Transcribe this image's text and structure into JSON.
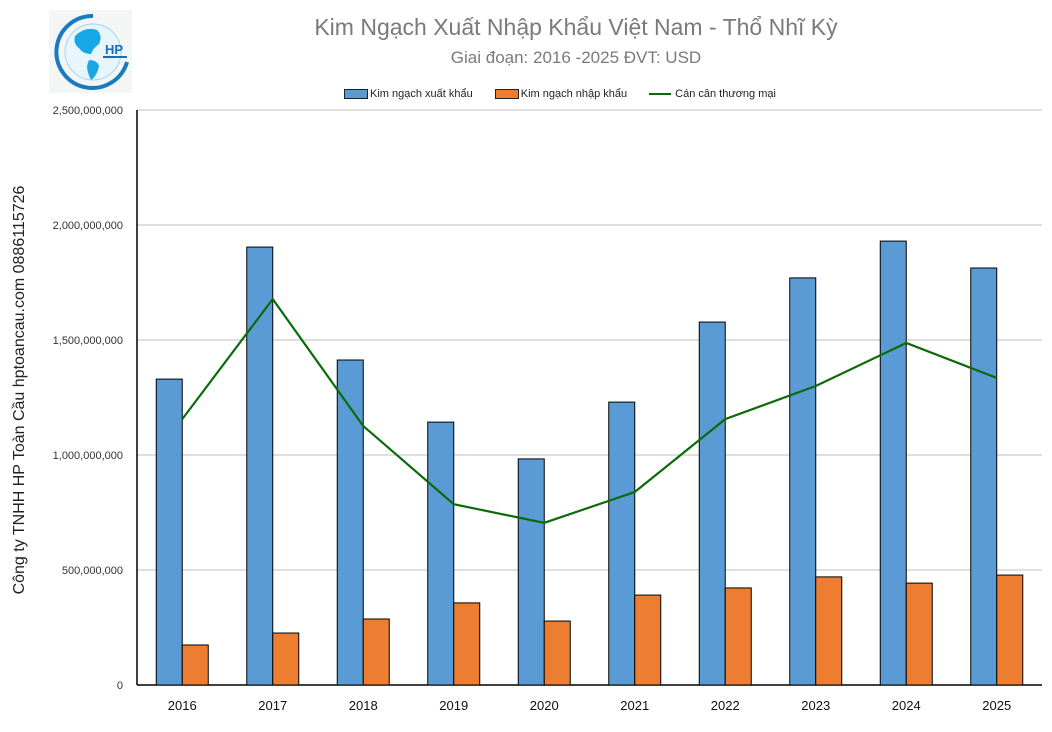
{
  "header": {
    "title": "Kim Ngạch Xuất Nhập Khẩu Việt Nam - Thổ Nhĩ Kỳ",
    "subtitle": "Giai đoạn: 2016 -2025  ĐVT: USD",
    "logo_text": "HP"
  },
  "side_label": "Công ty TNHH HP Toàn Cầu hptoancau.com 0886115726",
  "legend": [
    {
      "label": "Kim ngạch xuất khẩu",
      "type": "box",
      "color": "#5b9bd5"
    },
    {
      "label": "Kim ngạch nhập khẩu",
      "type": "box",
      "color": "#ed7d31"
    },
    {
      "label": "Cán cân thương mại",
      "type": "line",
      "color": "#0b6b0b"
    }
  ],
  "colors": {
    "export": "#5b9bd5",
    "import": "#ed7d31",
    "balance": "#0b6b0b",
    "grid": "#bfbfbf",
    "title": "#7a7a7a"
  },
  "chart_data": {
    "type": "bar",
    "title": "Kim Ngạch Xuất Nhập Khẩu Việt Nam - Thổ Nhĩ Kỳ",
    "subtitle": "Giai đoạn: 2016 -2025  ĐVT: USD",
    "xlabel": "",
    "ylabel": "",
    "ylim": [
      0,
      2500000000
    ],
    "yticks": [
      0,
      500000000,
      1000000000,
      1500000000,
      2000000000,
      2500000000
    ],
    "ytick_labels": [
      "0",
      "500,000,000",
      "1,000,000,000",
      "1,500,000,000",
      "2,000,000,000",
      "2,500,000,000"
    ],
    "grid": true,
    "legend_position": "top",
    "categories": [
      "2016",
      "2017",
      "2018",
      "2019",
      "2020",
      "2021",
      "2022",
      "2023",
      "2024",
      "2025"
    ],
    "series": [
      {
        "name": "Kim ngạch xuất khẩu",
        "type": "bar",
        "color": "#5b9bd5",
        "values": [
          1330000000,
          1904000000,
          1413000000,
          1143000000,
          983000000,
          1230000000,
          1578000000,
          1770000000,
          1930000000,
          1813000000
        ]
      },
      {
        "name": "Kim ngạch nhập khẩu",
        "type": "bar",
        "color": "#ed7d31",
        "values": [
          174000000,
          226000000,
          287000000,
          357000000,
          278000000,
          391000000,
          422000000,
          470000000,
          443000000,
          478000000
        ]
      },
      {
        "name": "Cán cân thương mại",
        "type": "line",
        "color": "#0b6b0b",
        "values": [
          1156000000,
          1678000000,
          1126000000,
          786000000,
          705000000,
          839000000,
          1156000000,
          1300000000,
          1487000000,
          1335000000
        ]
      }
    ]
  }
}
